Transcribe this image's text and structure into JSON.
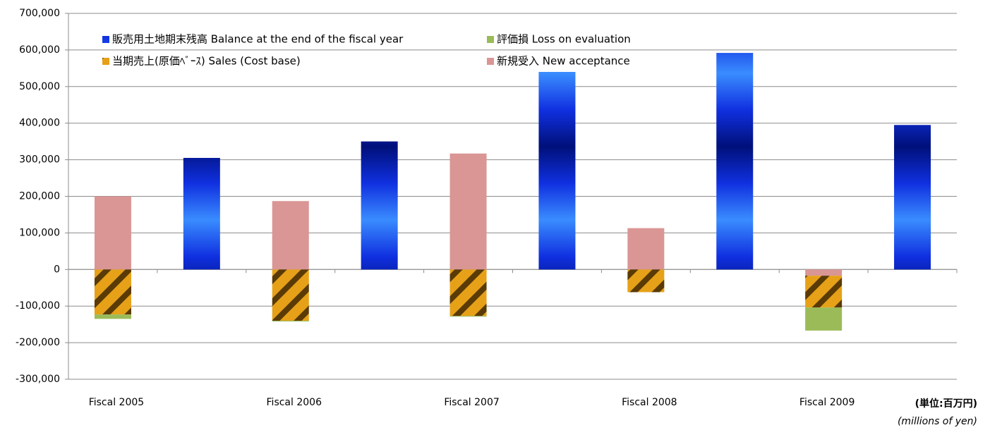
{
  "chart_data": {
    "type": "bar",
    "stacked": true,
    "categories": [
      "Fiscal 2005",
      null,
      "Fiscal 2006",
      null,
      "Fiscal 2007",
      null,
      "Fiscal 2008",
      null,
      "Fiscal 2009",
      null
    ],
    "series": [
      {
        "name": "新規受入 New acceptance",
        "color": "#d99694",
        "values": [
          200000,
          null,
          187000,
          null,
          317000,
          null,
          113000,
          null,
          -17000,
          null
        ]
      },
      {
        "name": "当期売上(原価ﾍﾞｰｽ) Sales (Cost base)",
        "color": "#e6a118",
        "values": [
          -123000,
          null,
          -140000,
          null,
          -127000,
          null,
          -62000,
          null,
          -87000,
          null
        ]
      },
      {
        "name": "評価損 Loss on evaluation",
        "color": "#9bbb59",
        "values": [
          -12000,
          null,
          -2000,
          null,
          -2000,
          null,
          null,
          null,
          -63000,
          null
        ]
      },
      {
        "name": "販売用土地期末残高 Balance at the end of the fiscal year",
        "color": "#1030e0",
        "values": [
          null,
          305000,
          null,
          350000,
          null,
          540000,
          null,
          592000,
          null,
          395000
        ]
      }
    ],
    "ylim": [
      -300000,
      700000
    ],
    "yticks": [
      {
        "value": -300000,
        "label": "-300,000"
      },
      {
        "value": -200000,
        "label": "-200,000"
      },
      {
        "value": -100000,
        "label": "-100,000"
      },
      0,
      {
        "value": 100000,
        "label": "100,000"
      },
      {
        "value": 200000,
        "label": "200,000"
      },
      {
        "value": 300000,
        "label": "300,000"
      },
      {
        "value": 400000,
        "label": "400,000"
      },
      {
        "value": 500000,
        "label": "500,000"
      },
      {
        "value": 600000,
        "label": "600,000"
      },
      {
        "value": 700000,
        "label": "700,000"
      }
    ],
    "grid": true,
    "annotations": [
      "(単位:百万円)",
      "(millions of yen)"
    ]
  }
}
